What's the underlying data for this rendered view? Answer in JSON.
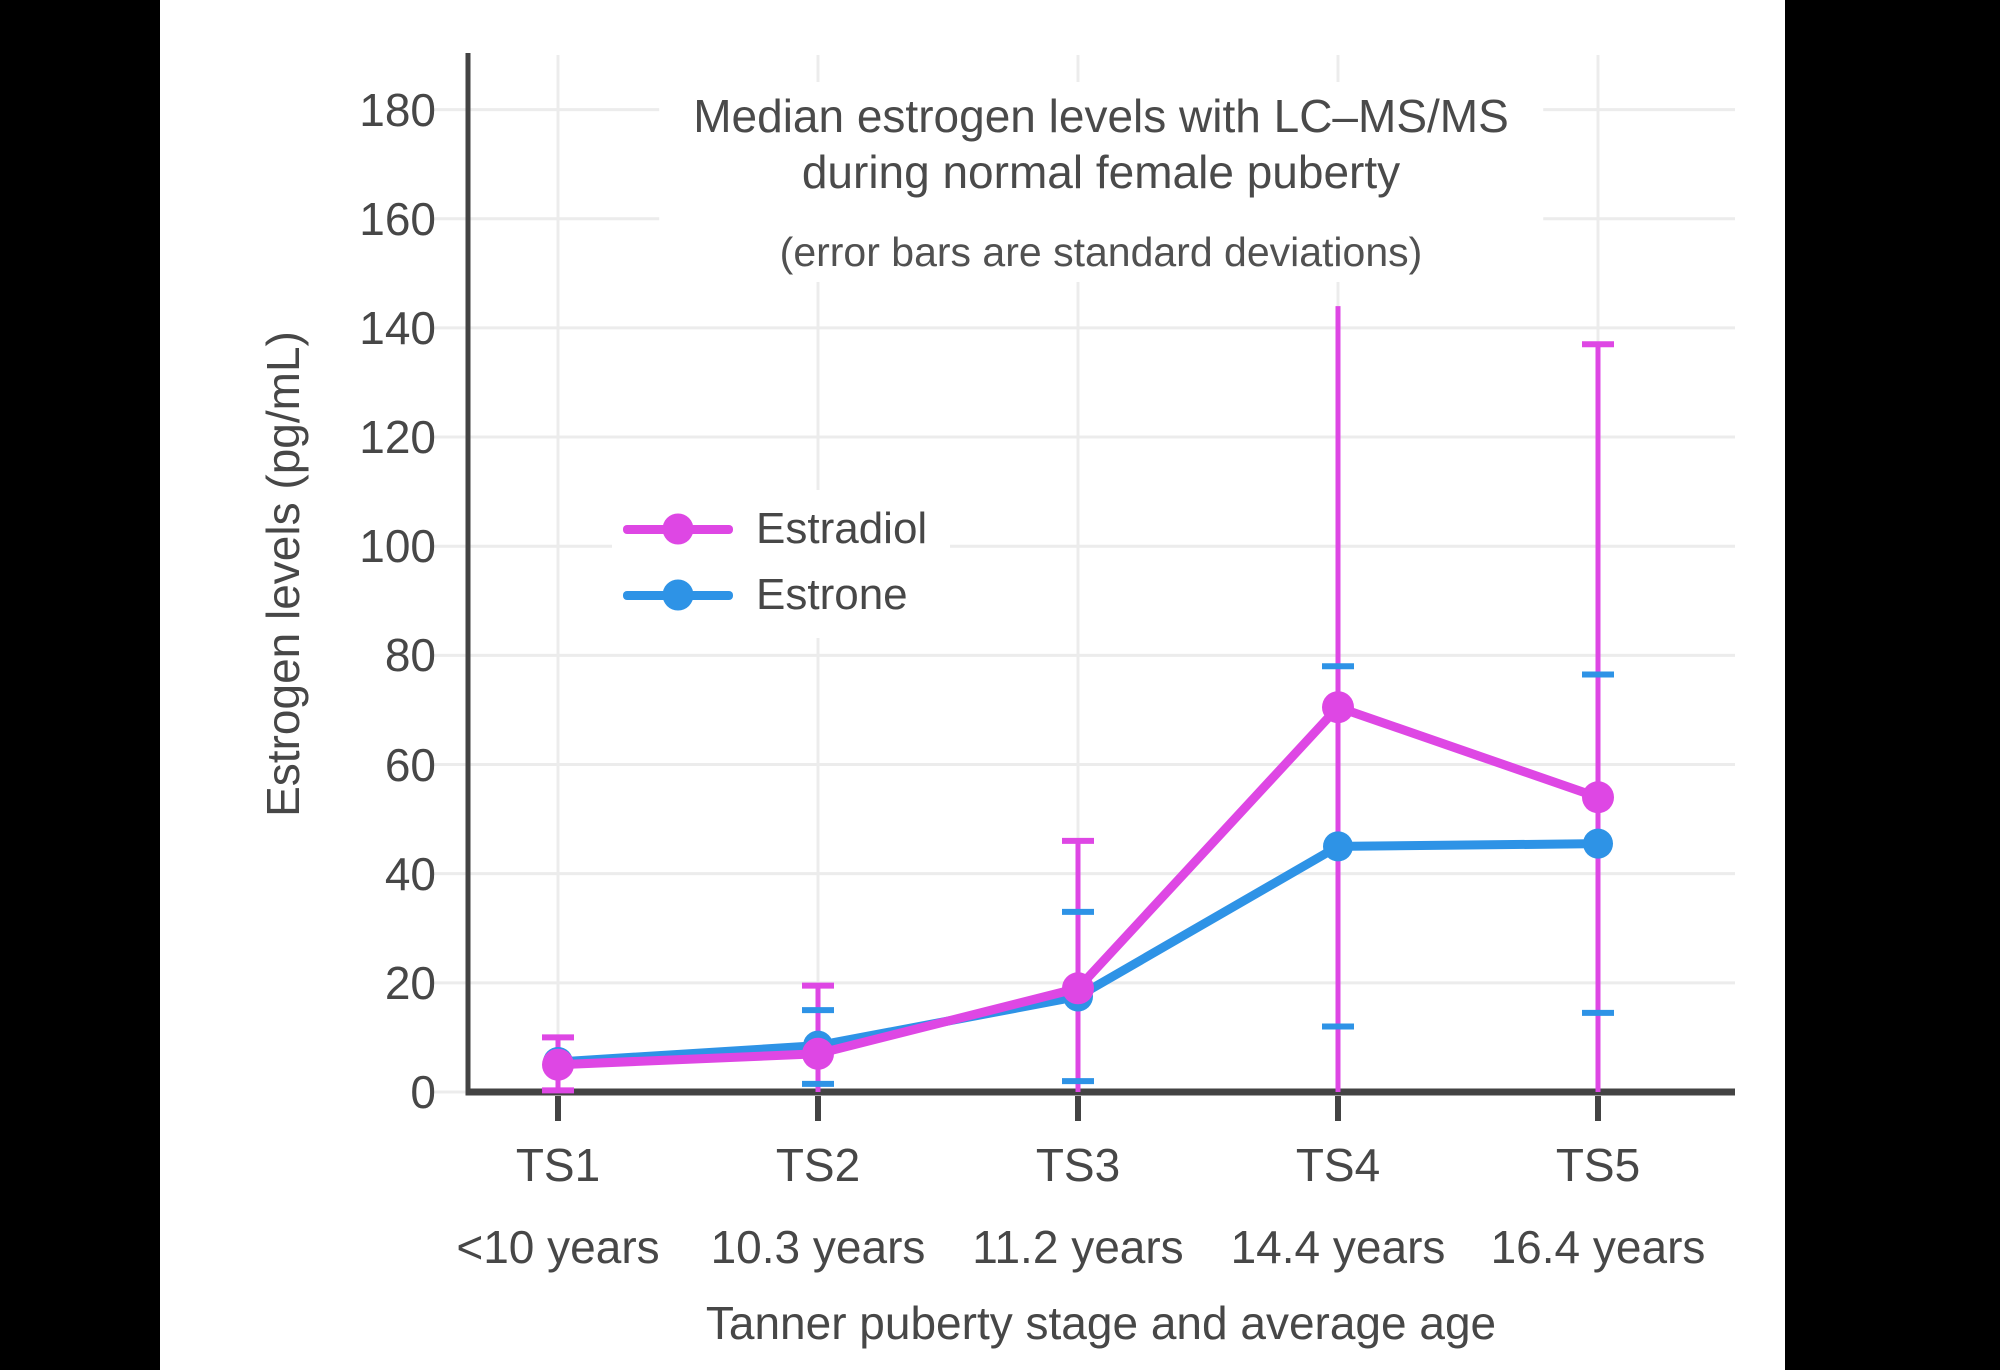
{
  "frame": {
    "background_color": "#000000",
    "panel_color": "#ffffff"
  },
  "chart_data": {
    "type": "line",
    "title_line1": "Median estrogen levels with LC–MS/MS",
    "title_line2": "during normal female puberty",
    "subtitle": "(error bars are standard deviations)",
    "xlabel": "Tanner puberty stage and average age",
    "ylabel": "Estrogen levels (pg/mL)",
    "categories": [
      "TS1",
      "TS2",
      "TS3",
      "TS4",
      "TS5"
    ],
    "category_ages": [
      "<10 years",
      "10.3 years",
      "11.2 years",
      "14.4 years",
      "16.4 years"
    ],
    "ylim": [
      0,
      190
    ],
    "yticks": [
      0,
      20,
      40,
      60,
      80,
      100,
      120,
      140,
      160,
      180
    ],
    "ytick_labels": [
      "0",
      "20",
      "40",
      "60",
      "80",
      "100",
      "120",
      "140",
      "160",
      "180"
    ],
    "grid": true,
    "legend_position": "inside-upper-left",
    "colors": {
      "grid": "#ececec",
      "axis": "#434343",
      "text": "#474747"
    },
    "series": [
      {
        "name": "Estradiol",
        "color": "#DE47E4",
        "values": [
          5,
          7,
          19,
          70.5,
          54
        ],
        "error_low": [
          0.3,
          0,
          0,
          0,
          0
        ],
        "error_high": [
          10,
          19.5,
          46,
          144,
          137
        ],
        "caps_top": [
          true,
          true,
          true,
          false,
          true
        ],
        "caps_bottom": [
          true,
          false,
          false,
          false,
          false
        ]
      },
      {
        "name": "Estrone",
        "color": "#2E93E6",
        "values": [
          5.5,
          8.5,
          17.5,
          45,
          45.5
        ],
        "error_low": [
          null,
          1.5,
          2,
          12,
          14.5
        ],
        "error_high": [
          null,
          15,
          33,
          78,
          76.5
        ],
        "caps_top": [
          false,
          true,
          true,
          true,
          true
        ],
        "caps_bottom": [
          false,
          true,
          true,
          true,
          true
        ]
      }
    ]
  }
}
